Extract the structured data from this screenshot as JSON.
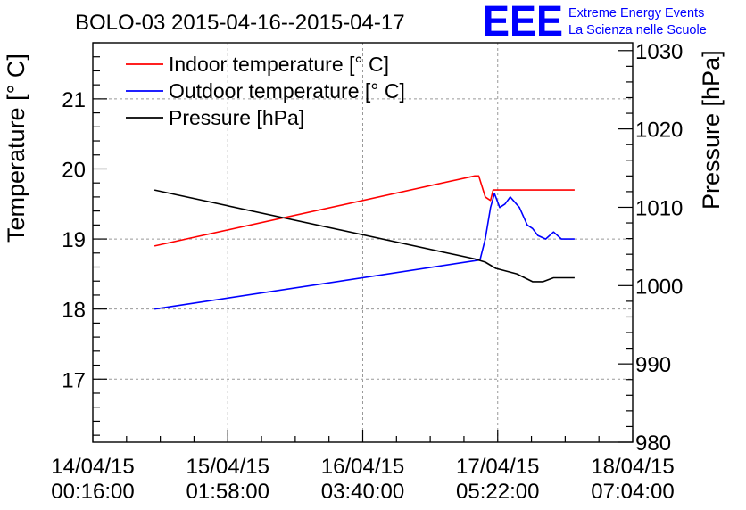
{
  "header": {
    "title": "BOLO-03 2015-04-16--2015-04-17",
    "logo_text": "EEE",
    "logo_line1": "Extreme Energy Events",
    "logo_line2": "La Scienza nelle Scuole"
  },
  "chart_data": {
    "type": "line",
    "ylabel": "Temperature [° C]",
    "y2label": "Pressure [hPa]",
    "x_ticks": [
      {
        "date": "14/04/15",
        "time": "00:16:00"
      },
      {
        "date": "15/04/15",
        "time": "01:58:00"
      },
      {
        "date": "16/04/15",
        "time": "03:40:00"
      },
      {
        "date": "17/04/15",
        "time": "05:22:00"
      },
      {
        "date": "18/04/15",
        "time": "07:04:00"
      }
    ],
    "x_tick_values": [
      "2015-04-14T00:16:00",
      "2015-04-15T01:58:00",
      "2015-04-16T03:40:00",
      "2015-04-17T05:22:00",
      "2015-04-18T07:04:00"
    ],
    "xlim": [
      "2015-04-14T00:16:00",
      "2015-04-18T07:04:00"
    ],
    "ylim": [
      16.1,
      21.8
    ],
    "y2lim": [
      980,
      1031
    ],
    "y_ticks": [
      17,
      18,
      19,
      20,
      21
    ],
    "y2_ticks": [
      980,
      990,
      1000,
      1010,
      1020,
      1030
    ],
    "grid": true,
    "legend_position": "top-left",
    "series": [
      {
        "name": "Indoor temperature [° C]",
        "axis": "left",
        "color": "#ff0000",
        "points": [
          [
            "2015-04-14T12:00:00",
            18.9
          ],
          [
            "2015-04-17T01:00:00",
            19.9
          ],
          [
            "2015-04-17T01:45:00",
            19.9
          ],
          [
            "2015-04-17T03:00:00",
            19.6
          ],
          [
            "2015-04-17T04:00:00",
            19.55
          ],
          [
            "2015-04-17T04:30:00",
            19.7
          ],
          [
            "2015-04-17T20:00:00",
            19.7
          ]
        ]
      },
      {
        "name": "Outdoor temperature [° C]",
        "axis": "left",
        "color": "#0000ff",
        "points": [
          [
            "2015-04-14T12:00:00",
            18.0
          ],
          [
            "2015-04-17T02:00:00",
            18.7
          ],
          [
            "2015-04-17T03:00:00",
            19.0
          ],
          [
            "2015-04-17T04:00:00",
            19.45
          ],
          [
            "2015-04-17T04:45:00",
            19.65
          ],
          [
            "2015-04-17T05:45:00",
            19.45
          ],
          [
            "2015-04-17T06:45:00",
            19.5
          ],
          [
            "2015-04-17T07:45:00",
            19.6
          ],
          [
            "2015-04-17T09:30:00",
            19.45
          ],
          [
            "2015-04-17T11:00:00",
            19.2
          ],
          [
            "2015-04-17T12:00:00",
            19.15
          ],
          [
            "2015-04-17T13:00:00",
            19.05
          ],
          [
            "2015-04-17T14:30:00",
            19.0
          ],
          [
            "2015-04-17T16:00:00",
            19.1
          ],
          [
            "2015-04-17T17:30:00",
            19.0
          ],
          [
            "2015-04-17T20:00:00",
            19.0
          ]
        ]
      },
      {
        "name": "Pressure [hPa]",
        "axis": "right",
        "color": "#000000",
        "points": [
          [
            "2015-04-14T12:00:00",
            1012.2
          ],
          [
            "2015-04-17T01:00:00",
            1003.4
          ],
          [
            "2015-04-17T03:00:00",
            1003.0
          ],
          [
            "2015-04-17T05:00:00",
            1002.2
          ],
          [
            "2015-04-17T09:00:00",
            1001.5
          ],
          [
            "2015-04-17T12:00:00",
            1000.5
          ],
          [
            "2015-04-17T14:00:00",
            1000.5
          ],
          [
            "2015-04-17T16:00:00",
            1001.0
          ],
          [
            "2015-04-17T20:00:00",
            1001.0
          ]
        ]
      }
    ]
  }
}
